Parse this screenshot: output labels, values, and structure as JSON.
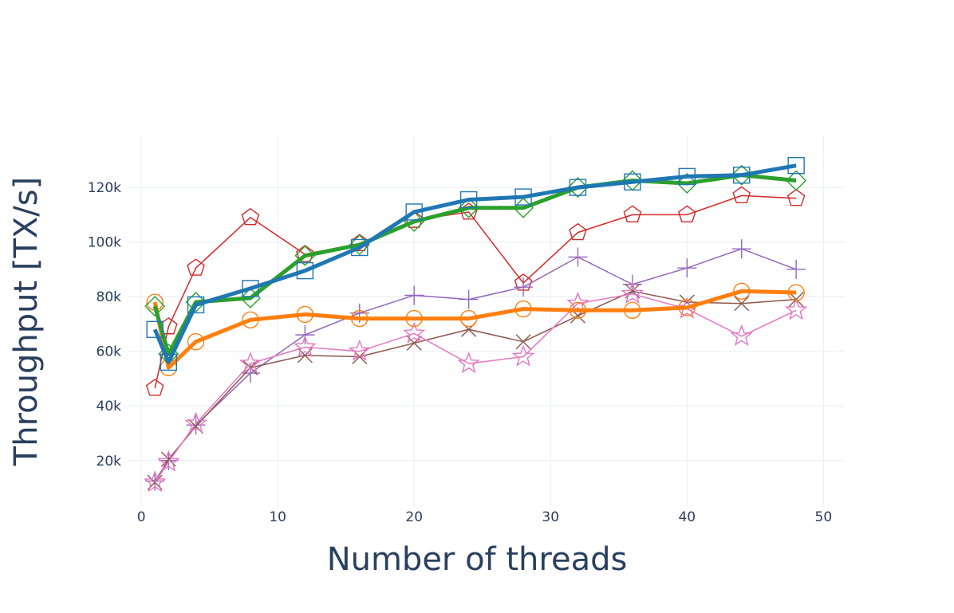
{
  "chart_data": {
    "type": "line",
    "xlabel": "Number of threads",
    "ylabel": "Throughput [TX/s]",
    "xlim": [
      -1,
      51.5
    ],
    "ylim": [
      3000,
      139000
    ],
    "xticks": [
      0,
      10,
      20,
      30,
      40,
      50
    ],
    "xtick_labels": [
      "0",
      "10",
      "20",
      "30",
      "40",
      "50"
    ],
    "yticks": [
      20000,
      40000,
      60000,
      80000,
      100000,
      120000
    ],
    "ytick_labels": [
      "20k",
      "40k",
      "60k",
      "80k",
      "100k",
      "120k"
    ],
    "grid": true,
    "legend": "none",
    "series": [
      {
        "color": "#1f77b4",
        "marker": "square",
        "line_width": 5,
        "x": [
          1,
          2,
          4,
          8,
          12,
          16,
          20,
          24,
          28,
          32,
          36,
          40,
          44,
          48
        ],
        "values": [
          68000,
          56000,
          77000,
          83000,
          89500,
          98000,
          111000,
          115500,
          116500,
          120000,
          122000,
          124000,
          124500,
          128000
        ]
      },
      {
        "color": "#ff7f0e",
        "marker": "circle",
        "line_width": 5,
        "x": [
          1,
          2,
          4,
          8,
          12,
          16,
          20,
          24,
          28,
          32,
          36,
          40,
          44,
          48
        ],
        "values": [
          78000,
          54000,
          63500,
          71500,
          73500,
          72000,
          72000,
          72000,
          75500,
          75000,
          75000,
          76000,
          82000,
          81500
        ]
      },
      {
        "color": "#2ca02c",
        "marker": "diamond",
        "line_width": 5,
        "x": [
          1,
          2,
          4,
          8,
          12,
          16,
          20,
          24,
          28,
          32,
          36,
          40,
          44,
          48
        ],
        "values": [
          76500,
          59000,
          78000,
          79500,
          95000,
          99000,
          107500,
          112500,
          112500,
          120000,
          122500,
          121500,
          124500,
          122500
        ]
      },
      {
        "color": "#d62728",
        "marker": "pentagon",
        "line_width": 1.5,
        "x": [
          1,
          2,
          4,
          8,
          12,
          16,
          20,
          24,
          28,
          32,
          36,
          40,
          44,
          48
        ],
        "values": [
          46500,
          69000,
          90500,
          109000,
          95500,
          99500,
          108000,
          111000,
          85000,
          103500,
          110000,
          110000,
          117000,
          116000
        ]
      },
      {
        "color": "#9467bd",
        "marker": "cross",
        "line_width": 1.5,
        "x": [
          1,
          2,
          4,
          8,
          12,
          16,
          20,
          24,
          28,
          32,
          36,
          40,
          44,
          48
        ],
        "values": [
          12500,
          20000,
          33000,
          52000,
          66000,
          74000,
          80500,
          79000,
          83500,
          94500,
          84500,
          90500,
          97500,
          90000
        ]
      },
      {
        "color": "#8c564b",
        "marker": "x",
        "line_width": 1.5,
        "x": [
          1,
          2,
          4,
          8,
          12,
          16,
          20,
          24,
          28,
          32,
          36,
          40,
          44,
          48
        ],
        "values": [
          12000,
          20500,
          32500,
          54000,
          58500,
          58000,
          63000,
          68000,
          63500,
          73000,
          82000,
          78000,
          77500,
          79000
        ]
      },
      {
        "color": "#e377c2",
        "marker": "star",
        "line_width": 1.5,
        "x": [
          1,
          2,
          4,
          8,
          12,
          16,
          20,
          24,
          28,
          32,
          36,
          40,
          44,
          48
        ],
        "values": [
          12000,
          19500,
          33500,
          55500,
          61500,
          60000,
          66500,
          55500,
          58000,
          77500,
          81000,
          75500,
          65500,
          75000
        ]
      }
    ]
  }
}
